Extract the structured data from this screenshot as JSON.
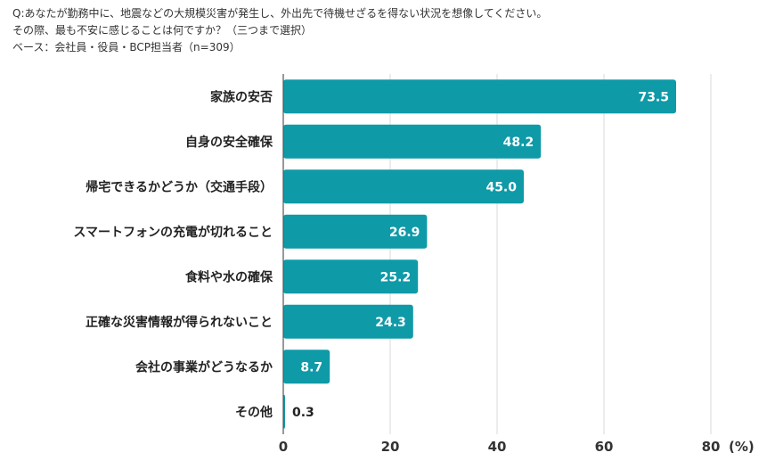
{
  "header": {
    "line1": "Q:あなたが勤務中に、地震などの大規模災害が発生し、外出先で待機せざるを得ない状況を想像してください。",
    "line2": "その際、最も不安に感じることは何ですか？（三つまで選択）",
    "line3": "ベース：会社員・役員・BCP担当者（n=309）"
  },
  "colors": {
    "bar": "#0f9aa8",
    "grid": "#d9d9d9",
    "axis": "#555555"
  },
  "chart_data": {
    "type": "bar",
    "orientation": "horizontal",
    "categories": [
      "家族の安否",
      "自身の安全確保",
      "帰宅できるかどうか（交通手段）",
      "スマートフォンの充電が切れること",
      "食料や水の確保",
      "正確な災害情報が得られないこと",
      "会社の事業がどうなるか",
      "その他"
    ],
    "values": [
      73.5,
      48.2,
      45.0,
      26.9,
      25.2,
      24.3,
      8.7,
      0.3
    ],
    "value_labels": [
      "73.5",
      "48.2",
      "45.0",
      "26.9",
      "25.2",
      "24.3",
      "8.7",
      "0.3"
    ],
    "xlim": [
      0,
      80
    ],
    "xticks": [
      0,
      20,
      40,
      60,
      80
    ],
    "xtick_labels": [
      "0",
      "20",
      "40",
      "60",
      "80"
    ],
    "unit": "(%)",
    "grid": true
  }
}
